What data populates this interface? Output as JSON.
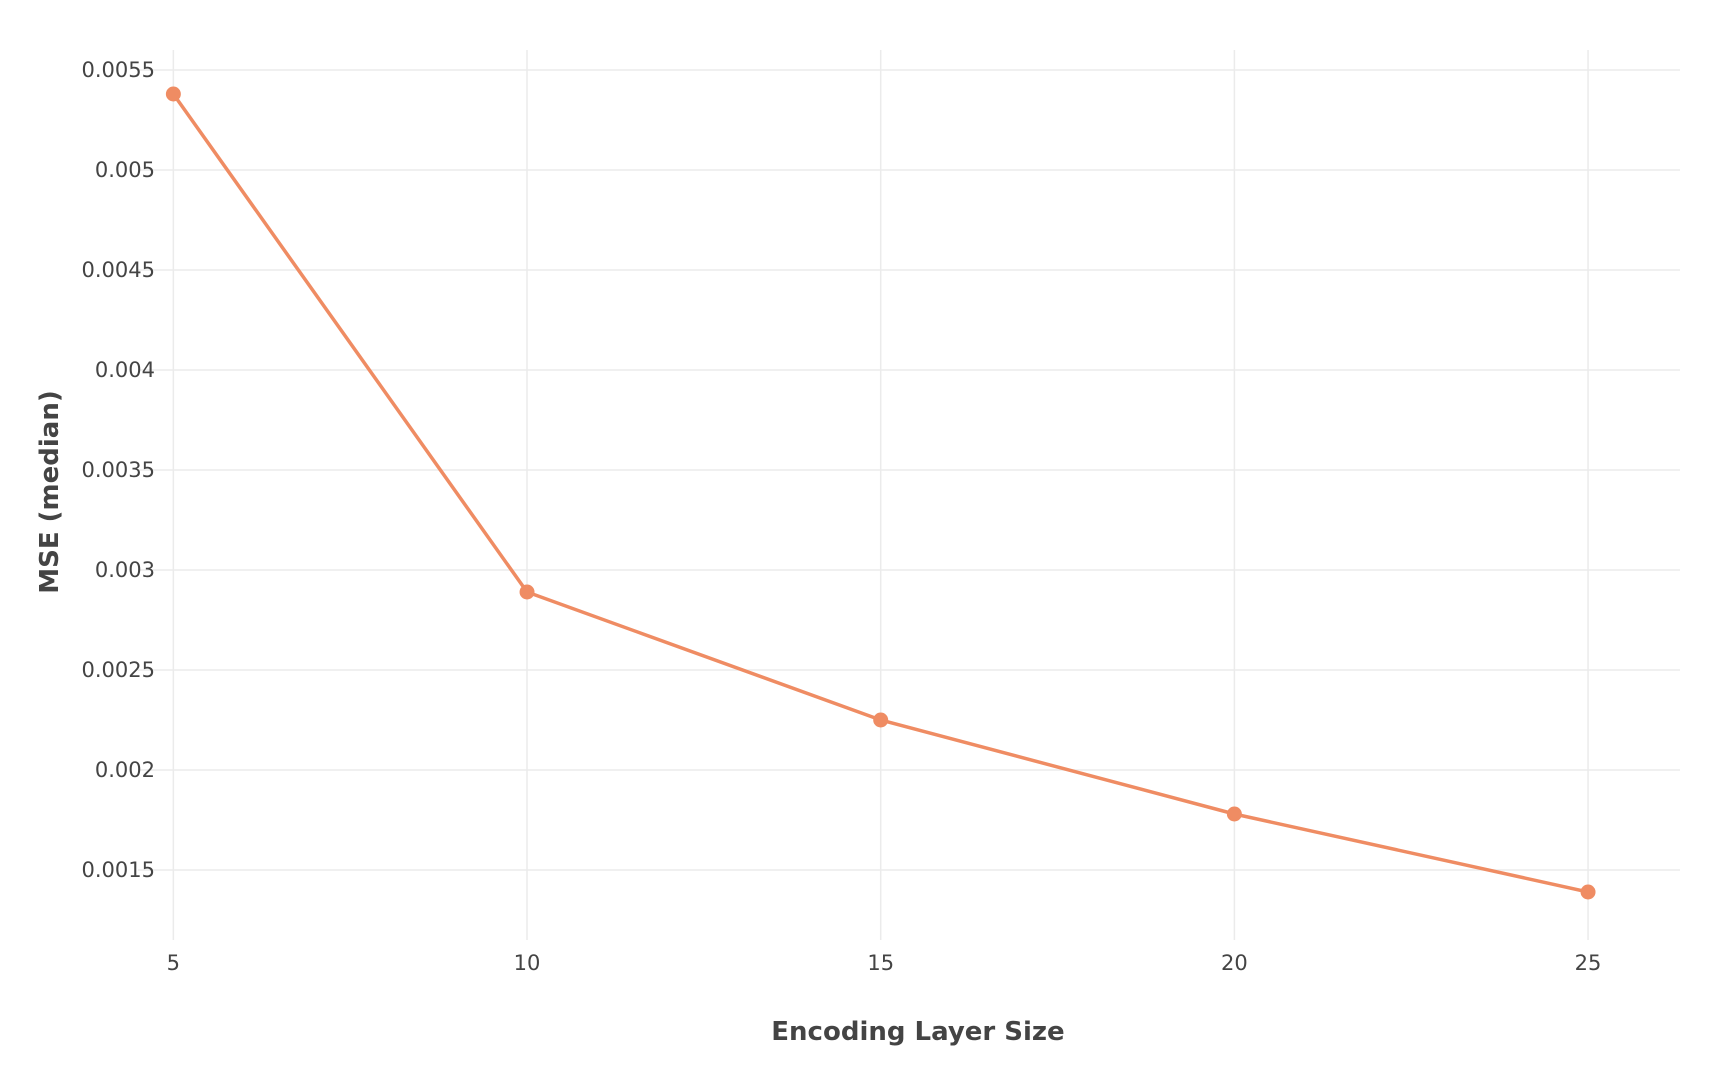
{
  "chart_data": {
    "type": "line",
    "title": "",
    "xlabel": "Encoding Layer Size",
    "ylabel": "MSE (median)",
    "x": [
      5,
      10,
      15,
      20,
      25
    ],
    "series": [
      {
        "name": "MSE (median)",
        "values": [
          0.00538,
          0.00289,
          0.00225,
          0.00178,
          0.00139
        ],
        "color": "#ef8c63"
      }
    ],
    "xlim": [
      4.5,
      26.3
    ],
    "ylim": [
      0.00115,
      0.0056
    ],
    "x_ticks": [
      5,
      10,
      15,
      20,
      25
    ],
    "x_tick_labels": [
      "5",
      "10",
      "15",
      "20",
      "25"
    ],
    "y_ticks": [
      0.0015,
      0.002,
      0.0025,
      0.003,
      0.0035,
      0.004,
      0.0045,
      0.005,
      0.0055
    ],
    "y_tick_labels": [
      "0.0015",
      "0.002",
      "0.0025",
      "0.003",
      "0.0035",
      "0.004",
      "0.0045",
      "0.005",
      "0.0055"
    ],
    "grid": true,
    "legend": "none",
    "grid_color": "#ebebeb",
    "text_color": "#444444"
  }
}
